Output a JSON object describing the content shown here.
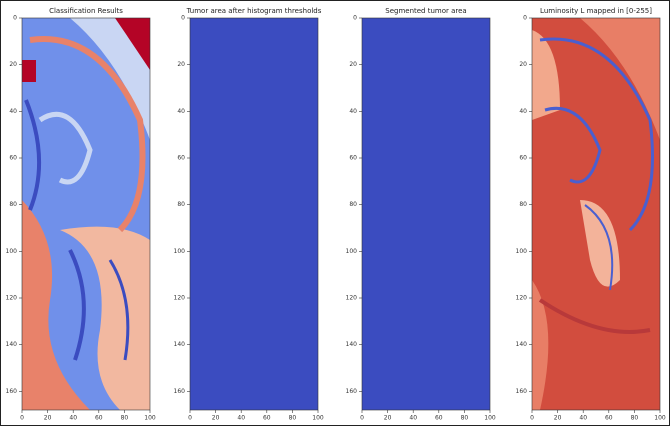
{
  "chart_data": [
    {
      "type": "image",
      "title": "Classification Results",
      "xlim": [
        0,
        100
      ],
      "ylim": [
        168,
        0
      ],
      "xticks": [
        0,
        20,
        40,
        60,
        80,
        100
      ],
      "yticks": [
        0,
        20,
        40,
        60,
        80,
        100,
        120,
        140,
        160
      ]
    },
    {
      "type": "image",
      "title": "Tumor area after histogram thresholds",
      "color": "#3b4cc0",
      "xlim": [
        0,
        100
      ],
      "ylim": [
        168,
        0
      ],
      "xticks": [
        0,
        20,
        40,
        60,
        80,
        100
      ],
      "yticks": [
        0,
        20,
        40,
        60,
        80,
        100,
        120,
        140,
        160
      ]
    },
    {
      "type": "image",
      "title": "Segmented tumor area",
      "color": "#3b4cc0",
      "xlim": [
        0,
        100
      ],
      "ylim": [
        168,
        0
      ],
      "xticks": [
        0,
        20,
        40,
        60,
        80,
        100
      ],
      "yticks": [
        0,
        20,
        40,
        60,
        80,
        100,
        120,
        140,
        160
      ]
    },
    {
      "type": "image",
      "title": "Luminosity L mapped in [0-255]",
      "xlim": [
        0,
        100
      ],
      "ylim": [
        168,
        0
      ],
      "xticks": [
        0,
        20,
        40,
        60,
        80,
        100
      ],
      "yticks": [
        0,
        20,
        40,
        60,
        80,
        100,
        120,
        140,
        160
      ]
    }
  ]
}
